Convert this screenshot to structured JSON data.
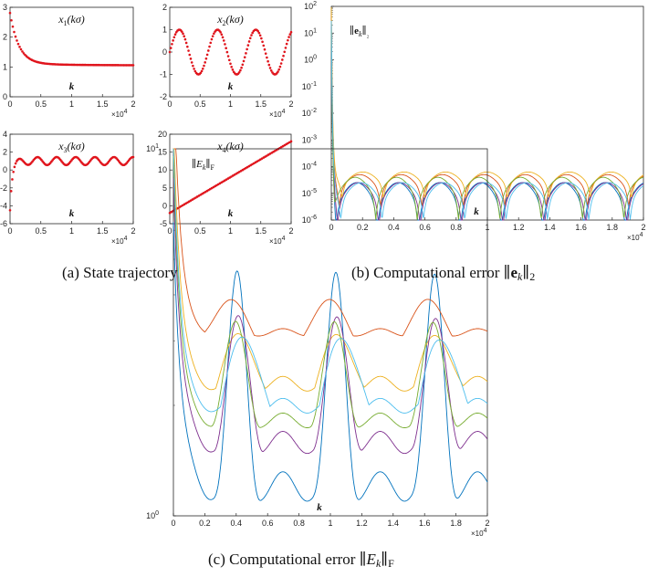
{
  "captions": {
    "a": "(a)  State trajectory",
    "b": "(b)  Computational error ∥e_k∥₂",
    "c": "(c)  Computational error ∥E_k∥_F"
  },
  "chart_data": [
    {
      "id": "x1",
      "type": "scatter",
      "title": "x1(kσ)",
      "xlabel": "k",
      "x_multiplier": "×10^4",
      "xlim": [
        0,
        2
      ],
      "ylim": [
        0,
        3
      ],
      "xticks": [
        "0",
        "0.5",
        "1",
        "1.5",
        "2"
      ],
      "yticks": [
        "0",
        "1",
        "2",
        "3"
      ],
      "series": [
        {
          "name": "x1",
          "color": "#e0141c",
          "x": [
            0,
            0.05,
            0.1,
            0.2,
            0.3,
            0.5,
            0.75,
            1.0,
            1.5,
            2.0
          ],
          "y": [
            2.75,
            2.0,
            1.7,
            1.42,
            1.3,
            1.18,
            1.12,
            1.09,
            1.06,
            1.05
          ]
        }
      ]
    },
    {
      "id": "x2",
      "type": "scatter",
      "title": "x2(kσ)",
      "xlabel": "k",
      "x_multiplier": "×10^4",
      "xlim": [
        0,
        2
      ],
      "ylim": [
        -2,
        2
      ],
      "xticks": [
        "0",
        "0.5",
        "1",
        "1.5",
        "2"
      ],
      "yticks": [
        "-2",
        "-1",
        "0",
        "1",
        "2"
      ],
      "series": [
        {
          "name": "x2",
          "color": "#e0141c",
          "x": [
            0,
            0.16,
            0.47,
            0.79,
            1.1,
            1.41,
            1.73,
            2.0
          ],
          "y": [
            0,
            1,
            -1,
            1,
            -1,
            1,
            -1,
            1
          ]
        }
      ]
    },
    {
      "id": "x3",
      "type": "scatter",
      "title": "x3(kσ)",
      "xlabel": "k",
      "x_multiplier": "×10^4",
      "xlim": [
        0,
        2
      ],
      "ylim": [
        -6,
        4
      ],
      "xticks": [
        "0",
        "0.5",
        "1",
        "1.5",
        "2"
      ],
      "yticks": [
        "-6",
        "-4",
        "-2",
        "0",
        "2",
        "4"
      ],
      "series": [
        {
          "name": "x3",
          "color": "#e0141c",
          "x": [
            0,
            0.03,
            0.08,
            0.15,
            0.25,
            0.5,
            1.0,
            1.5,
            2.0
          ],
          "y": [
            -5.5,
            -2.0,
            0.0,
            0.8,
            0.8,
            1.3,
            0.6,
            1.7,
            1.5
          ]
        }
      ]
    },
    {
      "id": "x4",
      "type": "scatter",
      "title": "x4(kσ)",
      "xlabel": "k",
      "x_multiplier": "×10^4",
      "xlim": [
        0,
        2
      ],
      "ylim": [
        -5,
        20
      ],
      "xticks": [
        "0",
        "0.5",
        "1",
        "1.5",
        "2"
      ],
      "yticks": [
        "-5",
        "0",
        "5",
        "10",
        "15",
        "20"
      ],
      "series": [
        {
          "name": "x4",
          "color": "#e0141c",
          "x": [
            0,
            0.5,
            1.0,
            1.5,
            2.0
          ],
          "y": [
            -2,
            3,
            8,
            13,
            18
          ]
        }
      ]
    },
    {
      "id": "ek",
      "type": "line",
      "yscale": "log",
      "ylabel": "∥e_k∥₂",
      "xlabel": "k",
      "x_multiplier": "×10^4",
      "xlim": [
        0,
        2
      ],
      "ylim_exp": [
        -6,
        2
      ],
      "xticks": [
        "0",
        "0.2",
        "0.4",
        "0.6",
        "0.8",
        "1",
        "1.2",
        "1.4",
        "1.6",
        "1.8",
        "2"
      ],
      "yticks": [
        "10^-6",
        "10^-5",
        "10^-4",
        "10^-3",
        "10^-2",
        "10^-1",
        "10^0",
        "10^1",
        "10^2"
      ],
      "notes": "multiple colored series decaying from ~10^1 to ~10^-4..10^-5 with periodic dips toward 10^-6",
      "series": [
        {
          "name": "e1",
          "color": "#0072bd"
        },
        {
          "name": "e2",
          "color": "#d95319"
        },
        {
          "name": "e3",
          "color": "#edb120"
        },
        {
          "name": "e4",
          "color": "#7e2f8e"
        },
        {
          "name": "e5",
          "color": "#77ac30"
        },
        {
          "name": "e6",
          "color": "#4dbeee"
        }
      ]
    },
    {
      "id": "Ek",
      "type": "line",
      "yscale": "log",
      "ylabel": "∥E_k∥_F",
      "xlabel": "k",
      "x_multiplier": "×10^4",
      "xlim": [
        0,
        2
      ],
      "ylim_exp": [
        0,
        1
      ],
      "xticks": [
        "0",
        "0.2",
        "0.4",
        "0.6",
        "0.8",
        "1",
        "1.2",
        "1.4",
        "1.6",
        "1.8",
        "2"
      ],
      "yticks": [
        "10^0",
        "10^1"
      ],
      "notes": "six colored series starting near 10^1 decaying to 1.5–5 with periodic oscillations",
      "series": [
        {
          "name": "E1",
          "color": "#0072bd"
        },
        {
          "name": "E2",
          "color": "#d95319"
        },
        {
          "name": "E3",
          "color": "#edb120"
        },
        {
          "name": "E4",
          "color": "#7e2f8e"
        },
        {
          "name": "E5",
          "color": "#77ac30"
        },
        {
          "name": "E6",
          "color": "#4dbeee"
        }
      ]
    }
  ]
}
